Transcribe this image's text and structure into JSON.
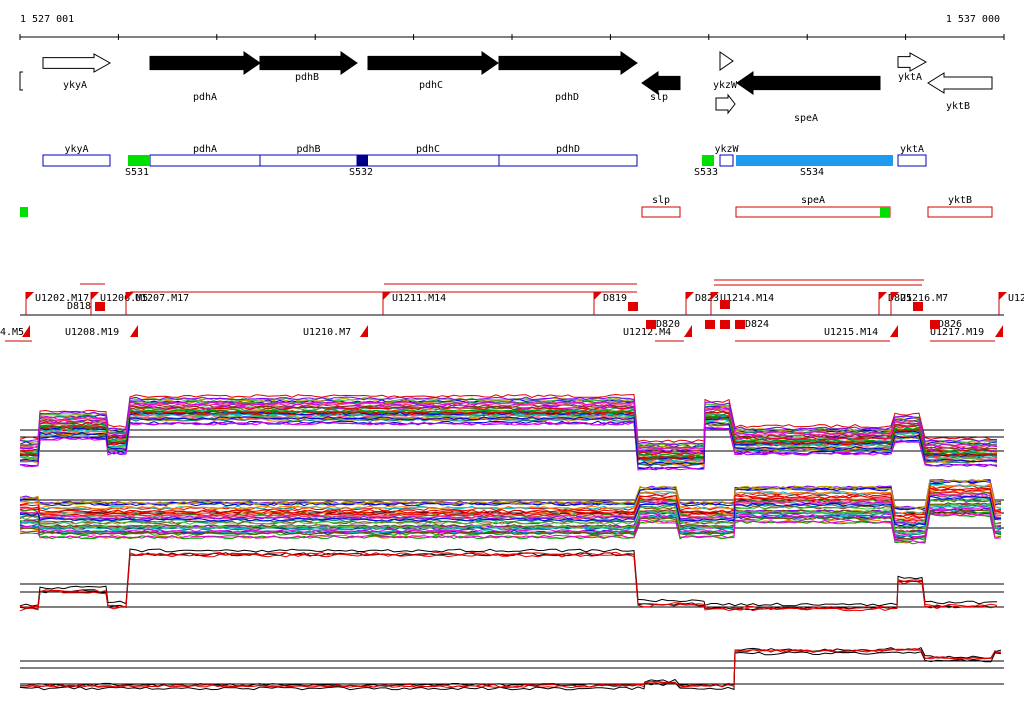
{
  "ruler": {
    "start": "1 527 001",
    "end": "1 537 000"
  },
  "genes": [
    "ykyA",
    "pdhA",
    "pdhB",
    "pdhC",
    "pdhD",
    "slp",
    "ykzW",
    "speA",
    "yktA",
    "yktB"
  ],
  "annotations": {
    "boxes": [
      "ykyA",
      "pdhA",
      "pdhB",
      "pdhC",
      "pdhD",
      "ykzW",
      "yktA"
    ],
    "sites": [
      "S531",
      "S532",
      "S533",
      "S534"
    ]
  },
  "reverse_boxes": [
    "slp",
    "speA",
    "yktB"
  ],
  "transcripts": {
    "upper": [
      "U1202.M17",
      "U1206.M5",
      "U1207.M17",
      "U1211.M14",
      "D819",
      "D823",
      "U1214.M14",
      "D825",
      "U1216.M7",
      "U12"
    ],
    "lower": [
      "4.M5",
      "D818",
      "U1208.M19",
      "U1210.M7",
      "U1212.M4",
      "D820",
      "D824",
      "U1215.M14",
      "D826",
      "U1217.M19"
    ]
  }
}
